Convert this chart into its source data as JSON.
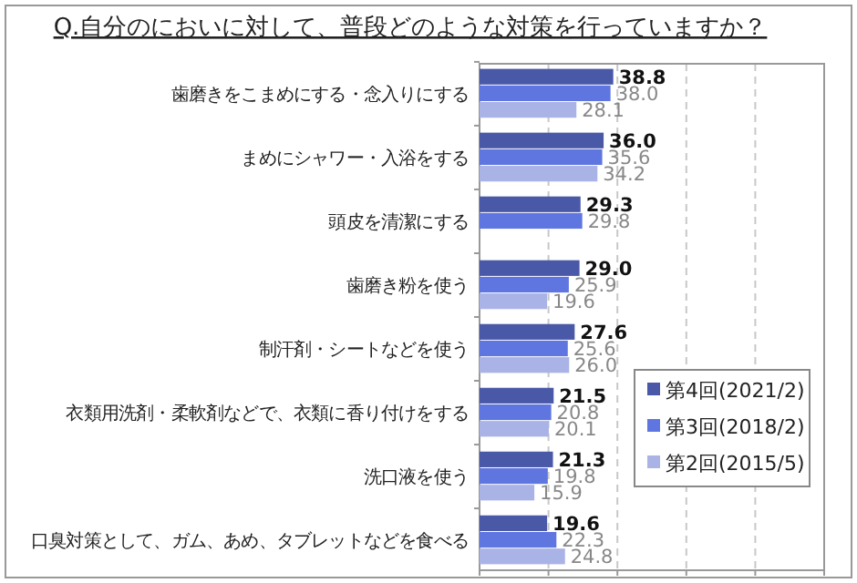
{
  "chart_data": {
    "type": "bar",
    "orientation": "horizontal",
    "title": "Q.自分のにおいに対して、普段どのような対策を行っていますか？",
    "categories": [
      "歯磨きをこまめにする・念入りにする",
      "まめにシャワー・入浴をする",
      "頭皮を清潔にする",
      "歯磨き粉を使う",
      "制汗剤・シートなどを使う",
      "衣類用洗剤・柔軟剤などで、衣類に香り付けをする",
      "洗口液を使う",
      "口臭対策として、ガム、あめ、タブレットなどを食べる"
    ],
    "series": [
      {
        "name": "第4回(2021/2)",
        "color": "#4a58a8",
        "values": [
          38.8,
          36.0,
          29.3,
          29.0,
          27.6,
          21.5,
          21.3,
          19.6
        ],
        "value_labels": [
          "38.8",
          "36.0",
          "29.3",
          "29.0",
          "27.6",
          "21.5",
          "21.3",
          "19.6"
        ]
      },
      {
        "name": "第3回(2018/2)",
        "color": "#5f76e0",
        "values": [
          38.0,
          35.6,
          29.8,
          25.9,
          25.6,
          20.8,
          19.8,
          22.3
        ],
        "value_labels": [
          "38.0",
          "35.6",
          "29.8",
          "25.9",
          "25.6",
          "20.8",
          "19.8",
          "22.3"
        ]
      },
      {
        "name": "第2回(2015/5)",
        "color": "#aab3e6",
        "values": [
          28.1,
          34.2,
          null,
          19.6,
          26.0,
          20.1,
          15.9,
          24.8
        ],
        "value_labels": [
          "28.1",
          "34.2",
          null,
          "19.6",
          "26.0",
          "20.1",
          "15.9",
          "24.8"
        ]
      }
    ],
    "xlim": [
      0,
      100
    ],
    "xticks": [
      {
        "value": 0,
        "label": null
      },
      {
        "value": 20,
        "label": null
      },
      {
        "value": 40,
        "label": null
      },
      {
        "value": 60,
        "label": null
      },
      {
        "value": 80,
        "label": null
      },
      {
        "value": 100,
        "label": null
      }
    ],
    "tick_labels": "y",
    "grid": "x",
    "legend": "bottom right"
  }
}
